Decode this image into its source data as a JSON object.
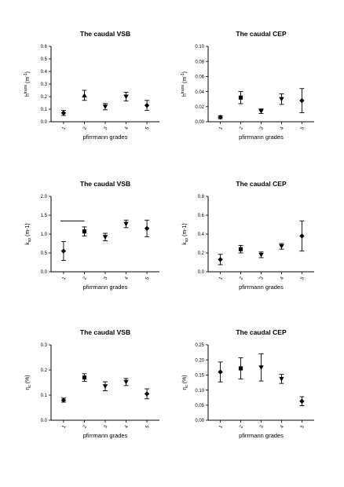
{
  "figure": {
    "panels_note": ""
  },
  "chart_data": [
    {
      "type": "scatter",
      "title": "The caudal  VSB",
      "xlabel": "pfirrmann grades",
      "ylabel_main": "h",
      "ylabel_sup": "trans",
      "ylabel_unit": "(m",
      "ylabel_unit_sup": "-1",
      "ylabel_close": ")",
      "categories": [
        "1",
        "2",
        "3",
        "4",
        "5"
      ],
      "ylim": [
        0,
        0.6
      ],
      "yticks": [
        "0.0",
        "0.1",
        "0.2",
        "0.3",
        "0.4",
        "0.5",
        "0.6"
      ],
      "markers": [
        "diamond",
        "triangle-up",
        "triangle-down",
        "triangle-down",
        "diamond"
      ],
      "values": [
        0.07,
        0.21,
        0.12,
        0.2,
        0.13
      ],
      "errors": [
        0.02,
        0.04,
        0.025,
        0.035,
        0.04
      ],
      "annotation_line": null
    },
    {
      "type": "scatter",
      "title": "The caudal  CEP",
      "xlabel": "pfirrmann grades",
      "ylabel_main": "h",
      "ylabel_sup": "trans",
      "ylabel_unit": "(m",
      "ylabel_unit_sup": "-1",
      "ylabel_close": ")",
      "categories": [
        "1",
        "2",
        "3",
        "4",
        "5"
      ],
      "ylim": [
        0,
        0.1
      ],
      "yticks": [
        "0.00",
        "0.02",
        "0.04",
        "0.06",
        "0.08",
        "0.10"
      ],
      "markers": [
        "diamond",
        "square",
        "triangle-down",
        "triangle-down",
        "diamond"
      ],
      "values": [
        0.006,
        0.032,
        0.014,
        0.03,
        0.028
      ],
      "errors": [
        0.002,
        0.008,
        0.003,
        0.007,
        0.016
      ],
      "annotation_line": null
    },
    {
      "type": "scatter",
      "title": "The caudal  VSB",
      "xlabel": "pfirrmann grades",
      "ylabel_main": "k",
      "ylabel_sub": "sp",
      "ylabel_unit": "(m-1)",
      "categories": [
        "1",
        "2",
        "3",
        "4",
        "5"
      ],
      "ylim": [
        0,
        2.0
      ],
      "yticks": [
        "0.0",
        "0.5",
        "1.0",
        "1.5",
        "2.0"
      ],
      "markers": [
        "diamond",
        "square",
        "triangle-down",
        "triangle-down",
        "diamond"
      ],
      "values": [
        0.55,
        1.07,
        0.92,
        1.27,
        1.15
      ],
      "errors": [
        0.25,
        0.12,
        0.1,
        0.1,
        0.22
      ],
      "annotation_line": {
        "x1": 1,
        "x2": 2,
        "y": 1.35
      }
    },
    {
      "type": "scatter",
      "title": "The caudal  CEP",
      "xlabel": "pfirrmann grades",
      "ylabel_main": "k",
      "ylabel_sub": "sp",
      "ylabel_unit": "(m-1)",
      "categories": [
        "1",
        "2",
        "3",
        "4",
        "5"
      ],
      "ylim": [
        0,
        0.8
      ],
      "yticks": [
        "0.0",
        "0.2",
        "0.4",
        "0.6",
        "0.8"
      ],
      "markers": [
        "diamond",
        "square",
        "triangle-down",
        "triangle-down",
        "diamond"
      ],
      "values": [
        0.13,
        0.24,
        0.18,
        0.27,
        0.38
      ],
      "errors": [
        0.055,
        0.04,
        0.03,
        0.03,
        0.16
      ],
      "annotation_line": null
    },
    {
      "type": "scatter",
      "title": "The caudal  VSB",
      "xlabel": "pfirrmann grades",
      "ylabel_main": "η",
      "ylabel_sub": "c",
      "ylabel_unit": "(%)",
      "categories": [
        "1",
        "2",
        "3",
        "4",
        "5"
      ],
      "ylim": [
        0,
        0.3
      ],
      "yticks": [
        "0.0",
        "0.1",
        "0.2",
        "0.3"
      ],
      "markers": [
        "diamond",
        "square",
        "triangle-down",
        "triangle-down",
        "diamond"
      ],
      "values": [
        0.08,
        0.17,
        0.135,
        0.152,
        0.105
      ],
      "errors": [
        0.008,
        0.015,
        0.018,
        0.014,
        0.02
      ],
      "annotation_line": null
    },
    {
      "type": "scatter",
      "title": "The caudal  CEP",
      "xlabel": "pfirrmann grades",
      "ylabel_main": "η",
      "ylabel_sub": "c",
      "ylabel_unit": "(%)",
      "categories": [
        "1",
        "2",
        "3",
        "4",
        "5"
      ],
      "ylim": [
        0,
        0.25
      ],
      "yticks": [
        "0.00",
        "0.05",
        "0.10",
        "0.15",
        "0.20",
        "0.25"
      ],
      "markers": [
        "diamond",
        "square",
        "triangle-down",
        "triangle-down",
        "diamond"
      ],
      "values": [
        0.16,
        0.172,
        0.175,
        0.137,
        0.063
      ],
      "errors": [
        0.033,
        0.035,
        0.045,
        0.015,
        0.015
      ],
      "annotation_line": null
    }
  ]
}
